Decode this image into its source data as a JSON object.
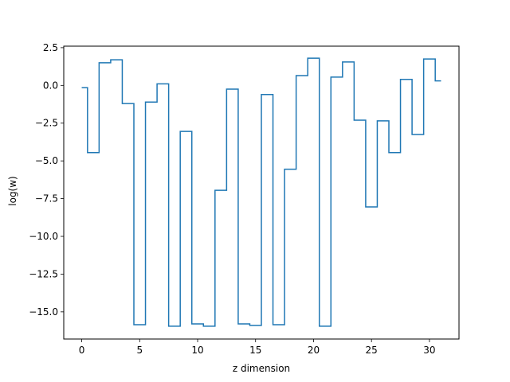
{
  "chart_data": {
    "type": "line",
    "drawstyle": "steps-mid",
    "title": "",
    "xlabel": "z dimension",
    "ylabel": "log(w)",
    "xlim": [
      -1.55,
      32.55
    ],
    "ylim": [
      -16.8,
      2.6
    ],
    "xticks": [
      0,
      5,
      10,
      15,
      20,
      25,
      30
    ],
    "yticks": [
      2.5,
      0.0,
      -2.5,
      -5.0,
      -7.5,
      -10.0,
      -12.5,
      -15.0
    ],
    "ytick_labels": [
      "2.5",
      "0.0",
      "−2.5",
      "−5.0",
      "−7.5",
      "−10.0",
      "−12.5",
      "−15.0"
    ],
    "grid": false,
    "legend": "none",
    "color": "#1f77b4",
    "series": [
      {
        "x": [
          0,
          1,
          2,
          3,
          4,
          5,
          6,
          7,
          8,
          9,
          10,
          11,
          12,
          13,
          14,
          15,
          16,
          17,
          18,
          19,
          20,
          21,
          22,
          23,
          24,
          25,
          26,
          27,
          28,
          29,
          30,
          31
        ],
        "y": [
          -0.15,
          -4.45,
          1.5,
          1.7,
          -1.2,
          -15.85,
          -1.1,
          0.1,
          -15.95,
          -3.05,
          -15.8,
          -15.95,
          -6.95,
          -0.25,
          -15.8,
          -15.9,
          -0.6,
          -15.85,
          -5.55,
          0.65,
          1.8,
          -15.95,
          0.55,
          1.55,
          -2.3,
          -8.05,
          -2.35,
          -4.45,
          0.4,
          -3.25,
          1.75,
          0.3
        ]
      }
    ]
  }
}
